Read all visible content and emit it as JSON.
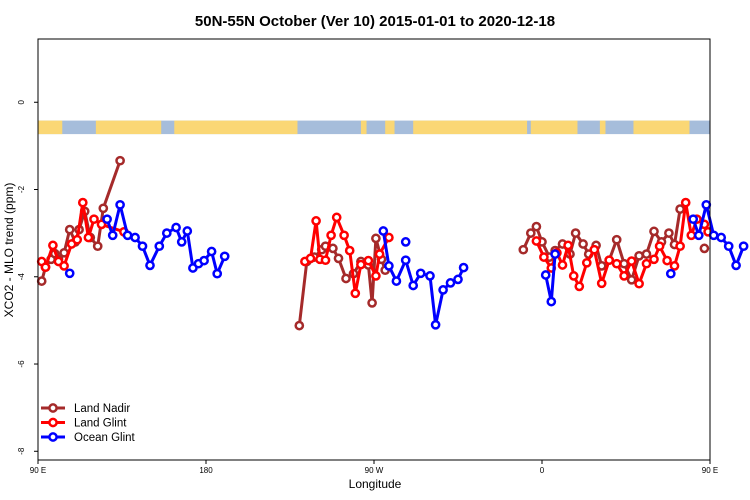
{
  "chart_data": {
    "type": "line",
    "title": "50N-55N October (Ver 10)   2015-01-01 to 2020-12-18",
    "xlabel": "Longitude",
    "ylabel": "XCO2 - MLO trend (ppm)",
    "xlim": [
      90,
      450
    ],
    "ylim": [
      -8.2,
      1.45
    ],
    "x_ticks": [
      {
        "value": 90,
        "label": "90 E"
      },
      {
        "value": 180,
        "label": "180"
      },
      {
        "value": 270,
        "label": "90 W"
      },
      {
        "value": 360,
        "label": "0"
      },
      {
        "value": 450,
        "label": "90 E"
      }
    ],
    "y_ticks": [
      {
        "value": 0,
        "label": "0"
      },
      {
        "value": -2,
        "label": "-2"
      },
      {
        "value": -4,
        "label": "-4"
      },
      {
        "value": -6,
        "label": "-6"
      },
      {
        "value": -8,
        "label": "-8"
      }
    ],
    "grid": false,
    "legend_position": "bottom-left",
    "land_ocean_strip": {
      "y_range": [
        -0.73,
        -0.42
      ],
      "land_color": "#fad775",
      "ocean_color": "#a6bddb",
      "land_segments": [
        [
          90,
          103
        ],
        [
          121,
          156
        ],
        [
          163,
          229
        ],
        [
          263,
          266
        ],
        [
          276,
          281
        ],
        [
          291,
          352
        ],
        [
          354,
          379
        ],
        [
          391,
          394
        ],
        [
          409,
          439
        ]
      ]
    },
    "series": [
      {
        "name": "Land Nadir",
        "color": "#a52a2a",
        "segments": [
          [
            [
              92,
              -4.1
            ],
            [
              94,
              -3.78
            ],
            [
              97,
              -3.6
            ],
            [
              99,
              -3.47
            ],
            [
              101,
              -3.6
            ],
            [
              104,
              -3.45
            ],
            [
              107,
              -2.92
            ],
            [
              110,
              -3.2
            ],
            [
              112,
              -2.92
            ],
            [
              115,
              -2.5
            ],
            [
              118,
              -3.1
            ],
            [
              122,
              -3.3
            ],
            [
              125,
              -2.43
            ],
            [
              134,
              -1.34
            ]
          ],
          [
            [
              230,
              -5.12
            ],
            [
              234,
              -3.65
            ],
            [
              238,
              -3.55
            ],
            [
              242,
              -3.38
            ],
            [
              244,
              -3.3
            ],
            [
              248,
              -3.35
            ],
            [
              251,
              -3.58
            ],
            [
              255,
              -4.04
            ],
            [
              259,
              -3.93
            ],
            [
              263,
              -3.65
            ],
            [
              267,
              -3.73
            ],
            [
              269,
              -4.6
            ],
            [
              271,
              -3.12
            ],
            [
              274,
              -3.6
            ],
            [
              276,
              -3.85
            ]
          ],
          [
            [
              350,
              -3.38
            ],
            [
              354,
              -3.0
            ],
            [
              357,
              -2.85
            ],
            [
              360,
              -3.2
            ],
            [
              364,
              -3.55
            ],
            [
              367,
              -3.4
            ],
            [
              371,
              -3.25
            ],
            [
              375,
              -3.48
            ],
            [
              378,
              -3.0
            ],
            [
              382,
              -3.25
            ],
            [
              385,
              -3.48
            ],
            [
              389,
              -3.28
            ],
            [
              392,
              -3.75
            ],
            [
              396,
              -3.62
            ],
            [
              400,
              -3.15
            ],
            [
              404,
              -3.7
            ],
            [
              408,
              -4.07
            ],
            [
              412,
              -3.52
            ],
            [
              416,
              -3.48
            ],
            [
              420,
              -2.96
            ],
            [
              424,
              -3.2
            ],
            [
              428,
              -3.0
            ],
            [
              431,
              -3.26
            ],
            [
              434,
              -2.45
            ]
          ],
          [
            [
              447,
              -3.35
            ]
          ]
        ]
      },
      {
        "name": "Land Glint",
        "color": "#ff0000",
        "segments": [
          [
            [
              92,
              -3.65
            ],
            [
              94,
              -3.78
            ],
            [
              98,
              -3.28
            ],
            [
              101,
              -3.65
            ],
            [
              104,
              -3.75
            ],
            [
              108,
              -3.25
            ],
            [
              111,
              -3.15
            ],
            [
              114,
              -2.3
            ],
            [
              117,
              -3.1
            ],
            [
              120,
              -2.68
            ],
            [
              124,
              -2.8
            ],
            [
              136,
              -2.97
            ]
          ],
          [
            [
              233,
              -3.65
            ],
            [
              236,
              -3.58
            ],
            [
              239,
              -2.72
            ],
            [
              241,
              -3.6
            ],
            [
              244,
              -3.62
            ],
            [
              247,
              -3.05
            ],
            [
              250,
              -2.64
            ],
            [
              254,
              -3.05
            ],
            [
              257,
              -3.4
            ],
            [
              260,
              -4.38
            ],
            [
              263,
              -3.72
            ],
            [
              267,
              -3.63
            ],
            [
              271,
              -3.98
            ],
            [
              273,
              -3.48
            ],
            [
              278,
              -3.1
            ]
          ],
          [
            [
              357,
              -3.18
            ],
            [
              361,
              -3.55
            ],
            [
              365,
              -3.8
            ],
            [
              368,
              -3.45
            ],
            [
              371,
              -3.73
            ],
            [
              374,
              -3.28
            ],
            [
              377,
              -3.98
            ],
            [
              380,
              -4.22
            ],
            [
              384,
              -3.68
            ],
            [
              388,
              -3.38
            ],
            [
              392,
              -4.15
            ],
            [
              396,
              -3.62
            ],
            [
              400,
              -3.7
            ],
            [
              404,
              -3.98
            ],
            [
              408,
              -3.64
            ],
            [
              412,
              -4.16
            ],
            [
              416,
              -3.7
            ],
            [
              420,
              -3.6
            ],
            [
              423,
              -3.3
            ],
            [
              427,
              -3.63
            ],
            [
              431,
              -3.75
            ],
            [
              434,
              -3.3
            ],
            [
              437,
              -2.3
            ],
            [
              440,
              -3.05
            ],
            [
              443,
              -2.68
            ],
            [
              447,
              -2.8
            ]
          ],
          [
            [
              449,
              -2.97
            ]
          ]
        ]
      },
      {
        "name": "Ocean Glint",
        "color": "#0000ff",
        "segments": [
          [
            [
              107,
              -3.92
            ]
          ],
          [
            [
              127,
              -2.68
            ],
            [
              130,
              -3.05
            ],
            [
              134,
              -2.35
            ],
            [
              138,
              -3.05
            ],
            [
              142,
              -3.1
            ],
            [
              146,
              -3.3
            ],
            [
              150,
              -3.74
            ],
            [
              155,
              -3.3
            ],
            [
              159,
              -3.0
            ],
            [
              164,
              -2.87
            ],
            [
              167,
              -3.2
            ],
            [
              170,
              -2.95
            ],
            [
              173,
              -3.8
            ],
            [
              176,
              -3.7
            ],
            [
              179,
              -3.63
            ],
            [
              183,
              -3.42
            ],
            [
              186,
              -3.93
            ],
            [
              190,
              -3.53
            ]
          ],
          [
            [
              275,
              -2.95
            ],
            [
              278,
              -3.75
            ],
            [
              282,
              -4.1
            ],
            [
              287,
              -3.62
            ],
            [
              291,
              -4.2
            ],
            [
              295,
              -3.92
            ],
            [
              300,
              -3.98
            ],
            [
              303,
              -5.1
            ],
            [
              307,
              -4.3
            ],
            [
              311,
              -4.14
            ],
            [
              315,
              -4.06
            ],
            [
              318,
              -3.79
            ]
          ],
          [
            [
              287,
              -3.2
            ]
          ],
          [
            [
              362,
              -3.96
            ],
            [
              365,
              -4.57
            ],
            [
              367,
              -3.48
            ]
          ],
          [
            [
              429,
              -3.93
            ]
          ],
          [
            [
              441,
              -2.68
            ],
            [
              444,
              -3.05
            ],
            [
              448,
              -2.35
            ],
            [
              452,
              -3.05
            ],
            [
              456,
              -3.1
            ],
            [
              460,
              -3.3
            ],
            [
              464,
              -3.74
            ],
            [
              468,
              -3.3
            ]
          ]
        ]
      }
    ]
  }
}
